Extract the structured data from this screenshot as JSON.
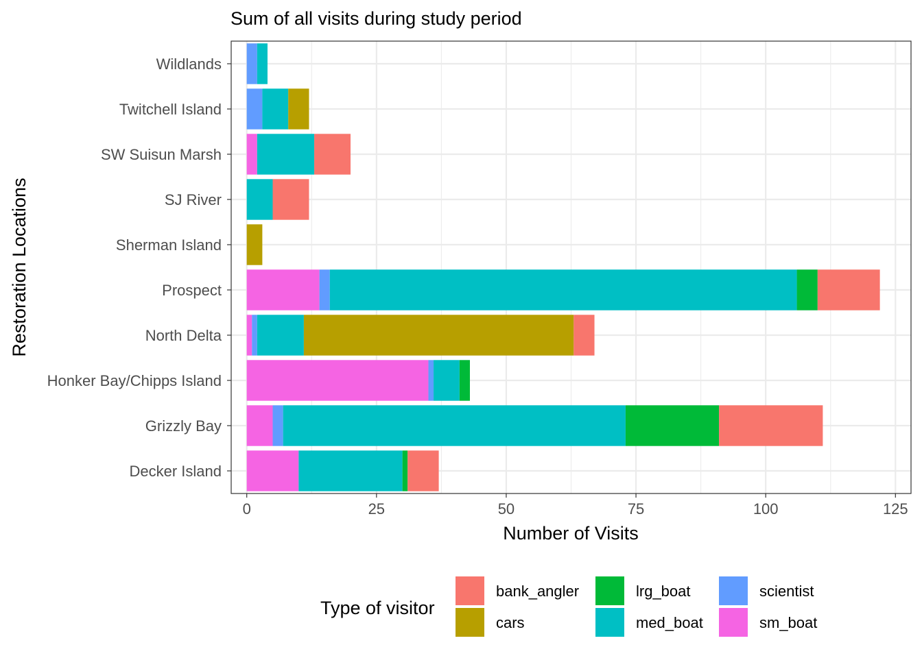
{
  "chart_data": {
    "type": "bar",
    "orientation": "horizontal",
    "stacked": true,
    "title": "Sum of all visits during study period",
    "xlabel": "Number of Visits",
    "ylabel": "Restoration Locations",
    "xlim": [
      -3,
      128
    ],
    "xticks": [
      0,
      25,
      50,
      75,
      100,
      125
    ],
    "grid": true,
    "legend": {
      "title": "Type of visitor",
      "position": "bottom"
    },
    "categories": [
      "Decker Island",
      "Grizzly Bay",
      "Honker Bay/Chipps Island",
      "North Delta",
      "Prospect",
      "Sherman Island",
      "SJ River",
      "SW Suisun Marsh",
      "Twitchell Island",
      "Wildlands"
    ],
    "stack_order": [
      "sm_boat",
      "scientist",
      "med_boat",
      "lrg_boat",
      "cars",
      "bank_angler"
    ],
    "series": [
      {
        "name": "bank_angler",
        "color": "#F8766D",
        "values": [
          6,
          20,
          0,
          4,
          12,
          0,
          7,
          7,
          0,
          0
        ]
      },
      {
        "name": "cars",
        "color": "#B79F00",
        "values": [
          0,
          0,
          0,
          52,
          0,
          3,
          0,
          0,
          4,
          0
        ]
      },
      {
        "name": "lrg_boat",
        "color": "#00BA38",
        "values": [
          1,
          18,
          2,
          0,
          4,
          0,
          0,
          0,
          0,
          0
        ]
      },
      {
        "name": "med_boat",
        "color": "#00BFC4",
        "values": [
          20,
          66,
          5,
          9,
          90,
          0,
          5,
          11,
          5,
          2
        ]
      },
      {
        "name": "scientist",
        "color": "#619CFF",
        "values": [
          0,
          2,
          1,
          1,
          2,
          0,
          0,
          0,
          3,
          2
        ]
      },
      {
        "name": "sm_boat",
        "color": "#F564E3",
        "values": [
          10,
          5,
          35,
          1,
          14,
          0,
          0,
          2,
          0,
          0
        ]
      }
    ]
  }
}
